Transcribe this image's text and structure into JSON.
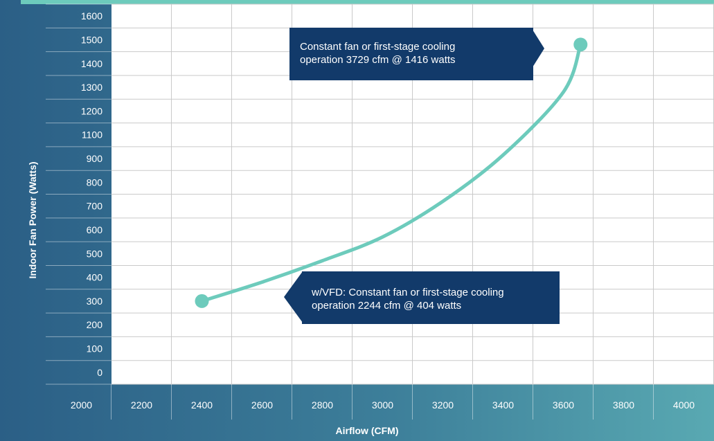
{
  "chart_data": {
    "type": "line",
    "xlabel": "Airflow (CFM)",
    "ylabel": "Indoor Fan Power (Watts)",
    "x_ticks": [
      2000,
      2200,
      2400,
      2600,
      2800,
      3000,
      3200,
      3400,
      3600,
      3800,
      4000
    ],
    "y_ticks": [
      0,
      100,
      200,
      300,
      400,
      500,
      600,
      700,
      800,
      900,
      1100,
      1200,
      1300,
      1400,
      1500,
      1600
    ],
    "xlim": [
      2000,
      4000
    ],
    "grid": true,
    "series": [
      {
        "x": [
          2300,
          2500,
          2700,
          2900,
          3100,
          3300,
          3500,
          3557
        ],
        "y": [
          300,
          380,
          470,
          570,
          720,
          930,
          1280,
          1480
        ]
      }
    ],
    "endpoints": [
      {
        "x": 2300,
        "y": 300
      },
      {
        "x": 3557,
        "y": 1480
      }
    ],
    "annotations": [
      {
        "line1": "Constant fan or first-stage cooling",
        "line2": "operation 3729 cfm @ 1416 watts"
      },
      {
        "line1": "w/VFD: Constant fan or first-stage cooling",
        "line2": "operation 2244 cfm @ 404 watts"
      }
    ],
    "colors": {
      "line": "#6dcbbc",
      "grid": "#c9c9c9",
      "plot_bg": "#ffffff",
      "annotation_bg": "#123a6a"
    }
  }
}
